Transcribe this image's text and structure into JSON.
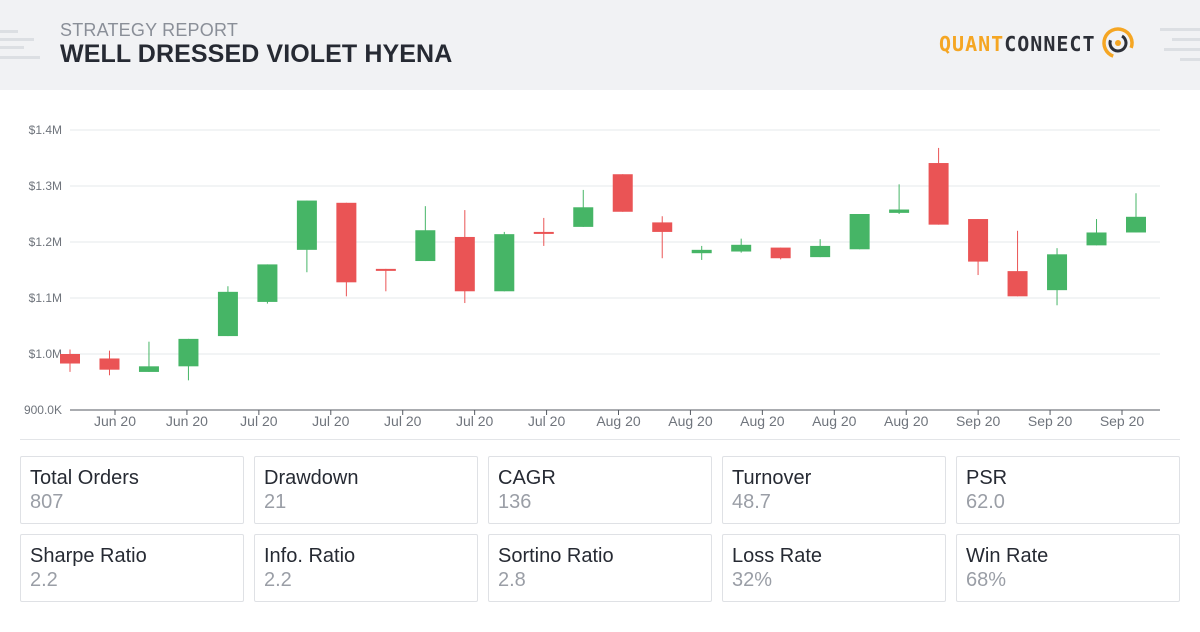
{
  "header": {
    "report_label": "STRATEGY REPORT",
    "strategy_name": "WELL DRESSED VIOLET HYENA",
    "logo_part1": "QUANT",
    "logo_part2": "CONNECT",
    "accent_color": "#f5a623"
  },
  "chart_data": {
    "type": "candlestick",
    "title": "",
    "xlabel": "",
    "ylabel": "",
    "ylim": [
      900000,
      1400000
    ],
    "y_ticks": [
      "900.0K",
      "$1.0M",
      "$1.1M",
      "$1.2M",
      "$1.3M",
      "$1.4M"
    ],
    "x_tick_labels": [
      "Jun 20",
      "Jun 20",
      "Jul 20",
      "Jul 20",
      "Jul 20",
      "Jul 20",
      "Jul 20",
      "Aug 20",
      "Aug 20",
      "Aug 20",
      "Aug 20",
      "Aug 20",
      "Sep 20",
      "Sep 20",
      "Sep 20"
    ],
    "grid": true,
    "up_color": "#46b566",
    "down_color": "#ea5455",
    "candles": [
      {
        "open": 1000000,
        "close": 983000,
        "high": 1008000,
        "low": 968000
      },
      {
        "open": 992000,
        "close": 972000,
        "high": 1006000,
        "low": 962000
      },
      {
        "open": 968000,
        "close": 978000,
        "high": 1022000,
        "low": 968000
      },
      {
        "open": 978000,
        "close": 1027000,
        "high": 1027000,
        "low": 953000
      },
      {
        "open": 1032000,
        "close": 1111000,
        "high": 1121000,
        "low": 1032000
      },
      {
        "open": 1093000,
        "close": 1160000,
        "high": 1160000,
        "low": 1090000
      },
      {
        "open": 1186000,
        "close": 1274000,
        "high": 1274000,
        "low": 1146000
      },
      {
        "open": 1270000,
        "close": 1128000,
        "high": 1270000,
        "low": 1103000
      },
      {
        "open": 1152000,
        "close": 1150000,
        "high": 1152000,
        "low": 1112000
      },
      {
        "open": 1166000,
        "close": 1221000,
        "high": 1264000,
        "low": 1166000
      },
      {
        "open": 1209000,
        "close": 1112000,
        "high": 1257000,
        "low": 1091000
      },
      {
        "open": 1112000,
        "close": 1214000,
        "high": 1218000,
        "low": 1112000
      },
      {
        "open": 1218000,
        "close": 1217000,
        "high": 1243000,
        "low": 1193000
      },
      {
        "open": 1227000,
        "close": 1262000,
        "high": 1293000,
        "low": 1227000
      },
      {
        "open": 1321000,
        "close": 1254000,
        "high": 1321000,
        "low": 1254000
      },
      {
        "open": 1235000,
        "close": 1218000,
        "high": 1246000,
        "low": 1171000
      },
      {
        "open": 1180000,
        "close": 1186000,
        "high": 1193000,
        "low": 1168000
      },
      {
        "open": 1183000,
        "close": 1195000,
        "high": 1206000,
        "low": 1181000
      },
      {
        "open": 1190000,
        "close": 1171000,
        "high": 1190000,
        "low": 1169000
      },
      {
        "open": 1173000,
        "close": 1193000,
        "high": 1205000,
        "low": 1173000
      },
      {
        "open": 1187000,
        "close": 1250000,
        "high": 1250000,
        "low": 1187000
      },
      {
        "open": 1252000,
        "close": 1258000,
        "high": 1303000,
        "low": 1250000
      },
      {
        "open": 1341000,
        "close": 1231000,
        "high": 1368000,
        "low": 1231000
      },
      {
        "open": 1241000,
        "close": 1165000,
        "high": 1241000,
        "low": 1141000
      },
      {
        "open": 1148000,
        "close": 1103000,
        "high": 1220000,
        "low": 1103000
      },
      {
        "open": 1114000,
        "close": 1178000,
        "high": 1189000,
        "low": 1087000
      },
      {
        "open": 1194000,
        "close": 1217000,
        "high": 1241000,
        "low": 1194000
      },
      {
        "open": 1217000,
        "close": 1245000,
        "high": 1287000,
        "low": 1217000
      }
    ]
  },
  "stats": [
    {
      "label": "Total Orders",
      "value": "807"
    },
    {
      "label": "Drawdown",
      "value": "21"
    },
    {
      "label": "CAGR",
      "value": "136"
    },
    {
      "label": "Turnover",
      "value": "48.7"
    },
    {
      "label": "PSR",
      "value": "62.0"
    },
    {
      "label": "Sharpe Ratio",
      "value": "2.2"
    },
    {
      "label": "Info. Ratio",
      "value": "2.2"
    },
    {
      "label": "Sortino Ratio",
      "value": "2.8"
    },
    {
      "label": "Loss Rate",
      "value": "32%"
    },
    {
      "label": "Win Rate",
      "value": "68%"
    }
  ]
}
